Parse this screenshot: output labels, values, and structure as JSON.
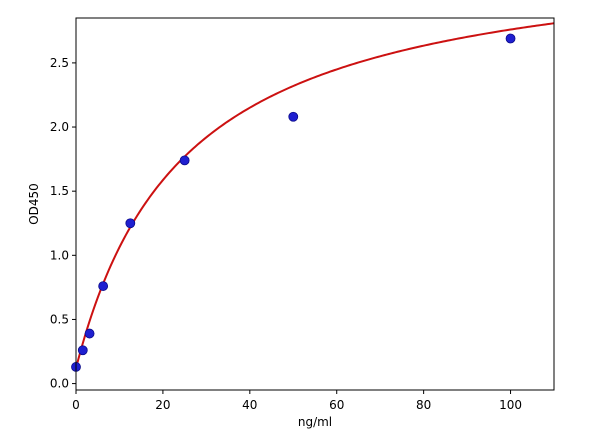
{
  "chart_data": {
    "type": "scatter",
    "xlabel": "ng/ml",
    "ylabel": "OD450",
    "xlim": [
      0,
      110
    ],
    "ylim": [
      -0.05,
      2.85
    ],
    "x_ticks": [
      0,
      20,
      40,
      60,
      80,
      100
    ],
    "y_ticks": [
      0.0,
      0.5,
      1.0,
      1.5,
      2.0,
      2.5
    ],
    "x_tick_labels": [
      "0",
      "20",
      "40",
      "60",
      "80",
      "100"
    ],
    "y_tick_labels": [
      "0.0",
      "0.5",
      "1.0",
      "1.5",
      "2.0",
      "2.5"
    ],
    "grid": false,
    "series": [
      {
        "type": "scatter",
        "color": "#1f1fd0",
        "points": [
          {
            "x": 0,
            "y": 0.13
          },
          {
            "x": 1.5625,
            "y": 0.26
          },
          {
            "x": 3.125,
            "y": 0.39
          },
          {
            "x": 6.25,
            "y": 0.76
          },
          {
            "x": 12.5,
            "y": 1.25
          },
          {
            "x": 25,
            "y": 1.74
          },
          {
            "x": 50,
            "y": 2.08
          },
          {
            "x": 100,
            "y": 2.69
          }
        ]
      },
      {
        "type": "line",
        "color": "#cc1111",
        "fit": {
          "model": "hyperbola",
          "ymax": 3.3,
          "k": 25,
          "offset": 0.12,
          "x_range": [
            0,
            110
          ]
        }
      }
    ]
  }
}
